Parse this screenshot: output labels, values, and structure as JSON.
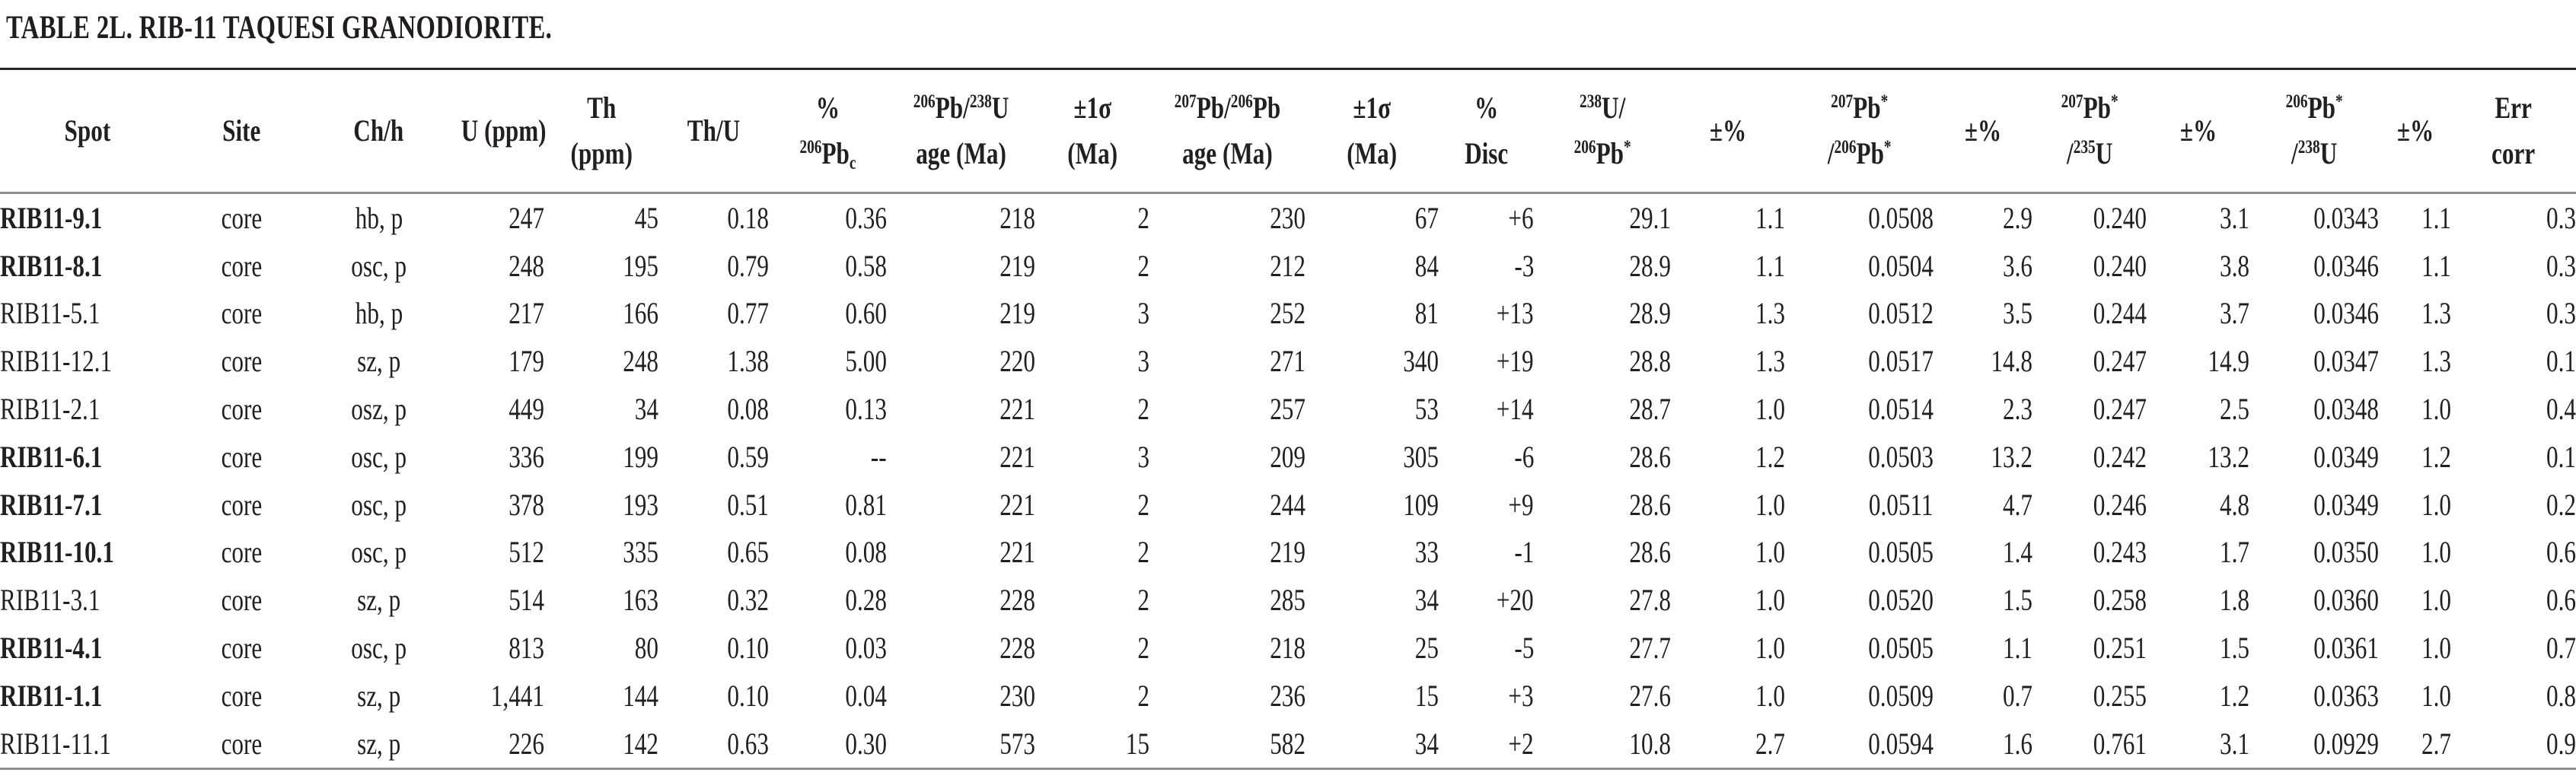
{
  "title": "TABLE 2L. RIB-11 TAQUESI GRANODIORITE.",
  "table": {
    "columns": [
      {
        "key": "spot",
        "label": "Spot"
      },
      {
        "key": "site",
        "label": "Site"
      },
      {
        "key": "ch-h",
        "label": "Ch/h"
      },
      {
        "key": "u-ppm",
        "label": "U (ppm)"
      },
      {
        "key": "th-ppm",
        "label": "Th\n(ppm)"
      },
      {
        "key": "th-u",
        "label": "Th/U"
      },
      {
        "key": "pct-206pbc",
        "label": "%\n^{206}Pb_{c}"
      },
      {
        "key": "age-206-238",
        "label": "^{206}Pb/^{238}U\nage (Ma)"
      },
      {
        "key": "err-1sigma-a",
        "label": "±1σ\n(Ma)"
      },
      {
        "key": "age-207-206",
        "label": "^{207}Pb/^{206}Pb\nage (Ma)"
      },
      {
        "key": "err-1sigma-b",
        "label": "±1σ\n(Ma)"
      },
      {
        "key": "pct-disc",
        "label": "%\nDisc"
      },
      {
        "key": "u238-pb206",
        "label": "^{238}U/\n^{206}Pb^{*}"
      },
      {
        "key": "err-pct-a",
        "label": "±%"
      },
      {
        "key": "pb207-pb206",
        "label": "^{207}Pb^{*}\n/^{206}Pb^{*}"
      },
      {
        "key": "err-pct-b",
        "label": "±%"
      },
      {
        "key": "pb207-u235",
        "label": "^{207}Pb^{*}\n/^{235}U"
      },
      {
        "key": "err-pct-c",
        "label": "±%"
      },
      {
        "key": "pb206-u238",
        "label": "^{206}Pb^{*}\n/^{238}U"
      },
      {
        "key": "err-pct-d",
        "label": "±%"
      },
      {
        "key": "err-corr",
        "label": "Err\ncorr"
      }
    ],
    "rows": [
      {
        "bold": true,
        "cells": [
          "RIB11-9.1",
          "core",
          "hb, p",
          "247",
          "45",
          "0.18",
          "0.36",
          "218",
          "2",
          "230",
          "67",
          "+6",
          "29.1",
          "1.1",
          "0.0508",
          "2.9",
          "0.240",
          "3.1",
          "0.0343",
          "1.1",
          "0.3"
        ]
      },
      {
        "bold": true,
        "cells": [
          "RIB11-8.1",
          "core",
          "osc, p",
          "248",
          "195",
          "0.79",
          "0.58",
          "219",
          "2",
          "212",
          "84",
          "-3",
          "28.9",
          "1.1",
          "0.0504",
          "3.6",
          "0.240",
          "3.8",
          "0.0346",
          "1.1",
          "0.3"
        ]
      },
      {
        "bold": false,
        "cells": [
          "RIB11-5.1",
          "core",
          "hb, p",
          "217",
          "166",
          "0.77",
          "0.60",
          "219",
          "3",
          "252",
          "81",
          "+13",
          "28.9",
          "1.3",
          "0.0512",
          "3.5",
          "0.244",
          "3.7",
          "0.0346",
          "1.3",
          "0.3"
        ]
      },
      {
        "bold": false,
        "cells": [
          "RIB11-12.1",
          "core",
          "sz, p",
          "179",
          "248",
          "1.38",
          "5.00",
          "220",
          "3",
          "271",
          "340",
          "+19",
          "28.8",
          "1.3",
          "0.0517",
          "14.8",
          "0.247",
          "14.9",
          "0.0347",
          "1.3",
          "0.1"
        ]
      },
      {
        "bold": false,
        "cells": [
          "RIB11-2.1",
          "core",
          "osz, p",
          "449",
          "34",
          "0.08",
          "0.13",
          "221",
          "2",
          "257",
          "53",
          "+14",
          "28.7",
          "1.0",
          "0.0514",
          "2.3",
          "0.247",
          "2.5",
          "0.0348",
          "1.0",
          "0.4"
        ]
      },
      {
        "bold": true,
        "cells": [
          "RIB11-6.1",
          "core",
          "osc, p",
          "336",
          "199",
          "0.59",
          "--",
          "221",
          "3",
          "209",
          "305",
          "-6",
          "28.6",
          "1.2",
          "0.0503",
          "13.2",
          "0.242",
          "13.2",
          "0.0349",
          "1.2",
          "0.1"
        ]
      },
      {
        "bold": true,
        "cells": [
          "RIB11-7.1",
          "core",
          "osc, p",
          "378",
          "193",
          "0.51",
          "0.81",
          "221",
          "2",
          "244",
          "109",
          "+9",
          "28.6",
          "1.0",
          "0.0511",
          "4.7",
          "0.246",
          "4.8",
          "0.0349",
          "1.0",
          "0.2"
        ]
      },
      {
        "bold": true,
        "cells": [
          "RIB11-10.1",
          "core",
          "osc, p",
          "512",
          "335",
          "0.65",
          "0.08",
          "221",
          "2",
          "219",
          "33",
          "-1",
          "28.6",
          "1.0",
          "0.0505",
          "1.4",
          "0.243",
          "1.7",
          "0.0350",
          "1.0",
          "0.6"
        ]
      },
      {
        "bold": false,
        "cells": [
          "RIB11-3.1",
          "core",
          "sz, p",
          "514",
          "163",
          "0.32",
          "0.28",
          "228",
          "2",
          "285",
          "34",
          "+20",
          "27.8",
          "1.0",
          "0.0520",
          "1.5",
          "0.258",
          "1.8",
          "0.0360",
          "1.0",
          "0.6"
        ]
      },
      {
        "bold": true,
        "cells": [
          "RIB11-4.1",
          "core",
          "osc, p",
          "813",
          "80",
          "0.10",
          "0.03",
          "228",
          "2",
          "218",
          "25",
          "-5",
          "27.7",
          "1.0",
          "0.0505",
          "1.1",
          "0.251",
          "1.5",
          "0.0361",
          "1.0",
          "0.7"
        ]
      },
      {
        "bold": true,
        "cells": [
          "RIB11-1.1",
          "core",
          "sz, p",
          "1,441",
          "144",
          "0.10",
          "0.04",
          "230",
          "2",
          "236",
          "15",
          "+3",
          "27.6",
          "1.0",
          "0.0509",
          "0.7",
          "0.255",
          "1.2",
          "0.0363",
          "1.0",
          "0.8"
        ]
      },
      {
        "bold": false,
        "cells": [
          "RIB11-11.1",
          "core",
          "sz, p",
          "226",
          "142",
          "0.63",
          "0.30",
          "573",
          "15",
          "582",
          "34",
          "+2",
          "10.8",
          "2.7",
          "0.0594",
          "1.6",
          "0.761",
          "3.1",
          "0.0929",
          "2.7",
          "0.9"
        ]
      }
    ]
  }
}
